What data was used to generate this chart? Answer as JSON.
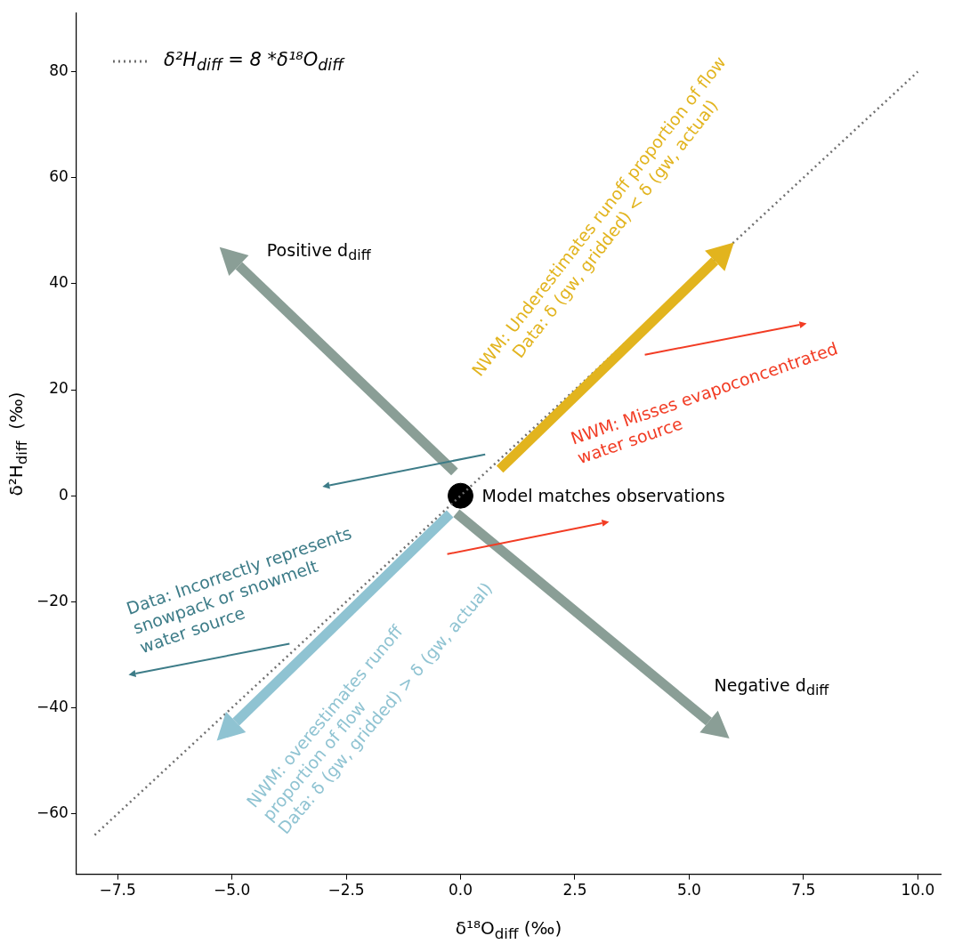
{
  "chart_data": {
    "type": "line",
    "xlabel": "δ¹⁸O$_{diff}$ (‰)",
    "ylabel": "δ²H$_{diff}$  (‰)",
    "xlim": [
      -8.4,
      10.5
    ],
    "ylim": [
      -71.4,
      91
    ],
    "xticks": [
      {
        "value": -7.5,
        "label": "−7.5"
      },
      {
        "value": -5,
        "label": "−5.0"
      },
      {
        "value": -2.5,
        "label": "−2.5"
      },
      {
        "value": 0,
        "label": "0.0"
      },
      {
        "value": 2.5,
        "label": "2.5"
      },
      {
        "value": 5,
        "label": "5.0"
      },
      {
        "value": 7.5,
        "label": "7.5"
      },
      {
        "value": 10,
        "label": "10.0"
      }
    ],
    "yticks": [
      {
        "value": -60,
        "label": "−60"
      },
      {
        "value": -40,
        "label": "−40"
      },
      {
        "value": -20,
        "label": "−20"
      },
      0,
      20,
      40,
      60,
      80
    ],
    "grid": false,
    "legend": "top left",
    "series": [
      {
        "name": "δ²H$_{diff}$ = 8 *δ¹⁸O$_{diff}$",
        "type": "line",
        "color": "#707070",
        "x": [
          -8,
          10
        ],
        "values": [
          -64,
          80
        ],
        "line_style": "dotted",
        "marker": "none"
      },
      {
        "name": "Model matches observations",
        "type": "scatter",
        "color": "#000000",
        "x": [
          0
        ],
        "values": [
          0
        ],
        "marker": "circle"
      }
    ],
    "annotations": [
      "Positive d$_{diff}$",
      "Negative d$_{diff}$",
      "NWM: Underestimates runoff proportion of flow\nData: δ (gw, gridded) < δ (gw, actual)",
      "NWM: overestimates runoff\nproportion of flow\nData: δ (gw, gridded) > δ (gw, actual)",
      "Data: Incorrectly represents\nsnowpack or snowmelt\nwater source",
      "NWM: Misses evapoconcentrated\nwater source"
    ]
  }
}
